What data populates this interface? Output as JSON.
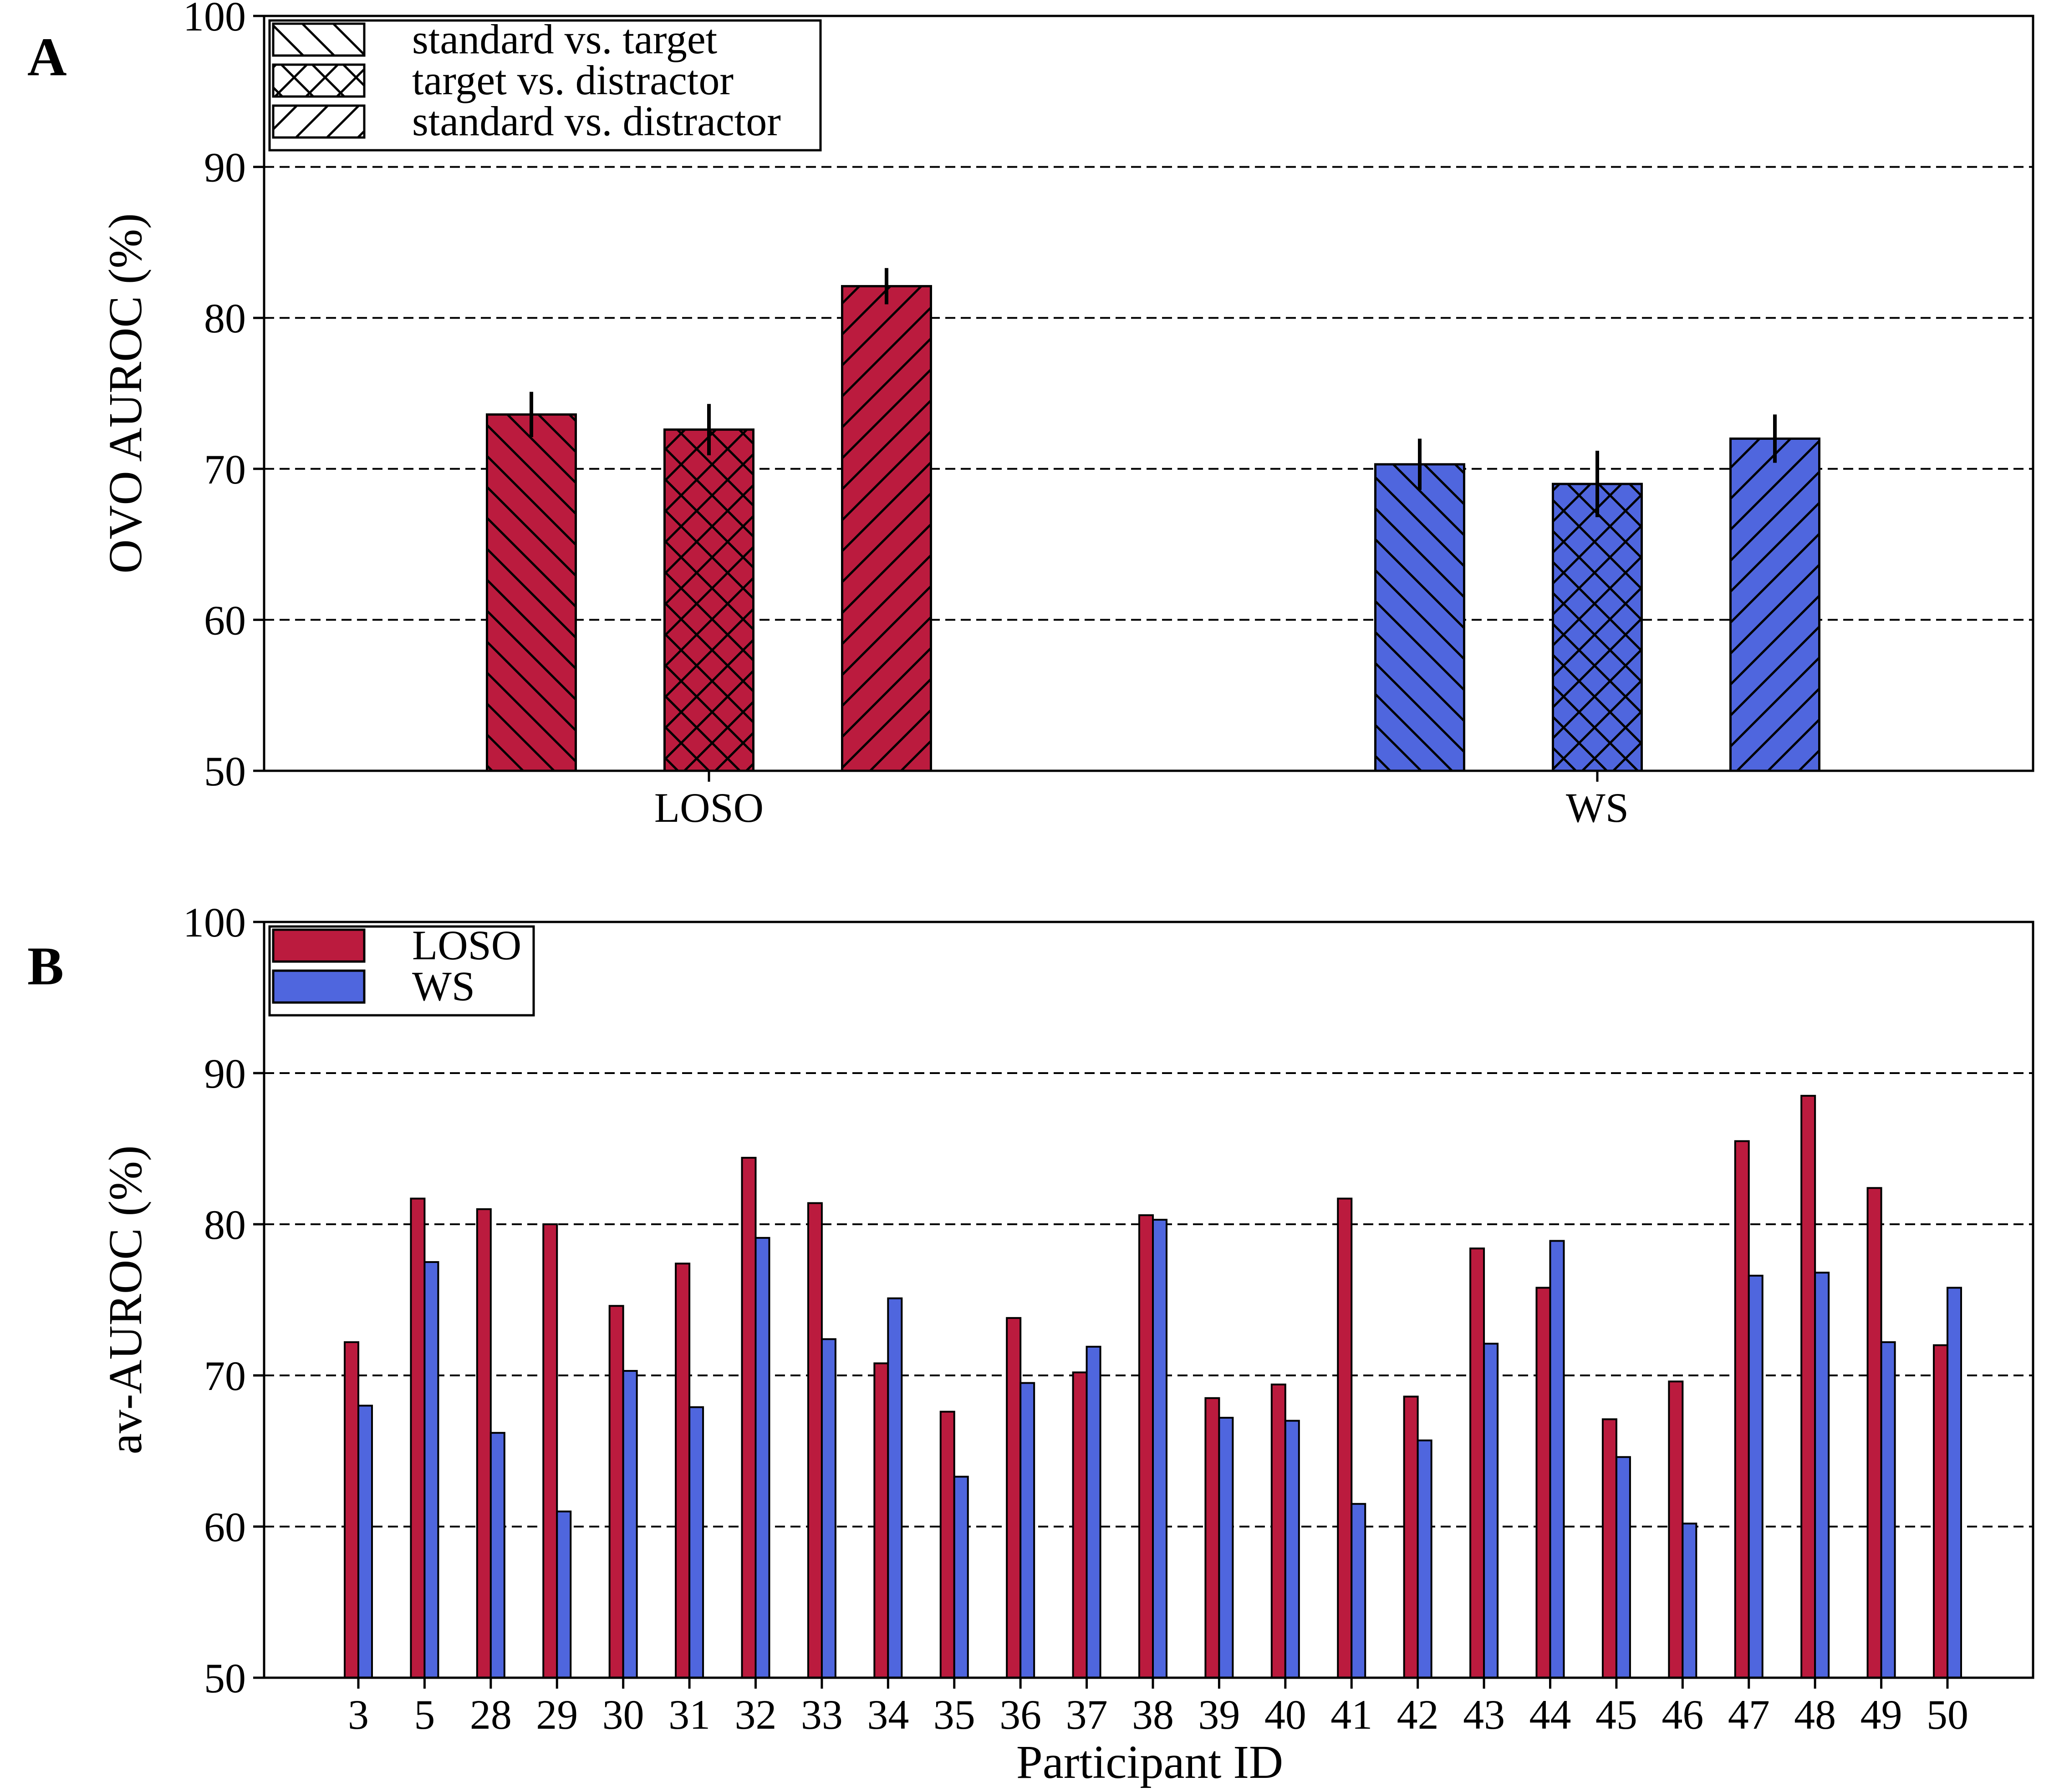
{
  "colors": {
    "loso": "#BB1B3E",
    "ws": "#4F66DE",
    "grid": "#000000"
  },
  "chart_data": [
    {
      "type": "bar",
      "panel_label": "A",
      "categories": [
        "LOSO",
        "WS"
      ],
      "ylabel": "OVO AUROC (%)",
      "ylim": [
        50,
        100
      ],
      "yticks": [
        50,
        60,
        70,
        80,
        90,
        100
      ],
      "grid": "horizontal dashed",
      "legend_placement": "top-left",
      "legend": [
        {
          "label": "standard vs. target",
          "hatch": "diag-down"
        },
        {
          "label": "target vs. distractor",
          "hatch": "cross"
        },
        {
          "label": "standard vs. distractor",
          "hatch": "diag-up"
        }
      ],
      "series": [
        {
          "name": "standard vs. target",
          "values": [
            73.6,
            70.3
          ],
          "errors": [
            1.5,
            1.7
          ]
        },
        {
          "name": "target vs. distractor",
          "values": [
            72.6,
            69.0
          ],
          "errors": [
            1.7,
            2.2
          ]
        },
        {
          "name": "standard vs. distractor",
          "values": [
            82.1,
            72.0
          ],
          "errors": [
            1.2,
            1.6
          ]
        }
      ]
    },
    {
      "type": "bar",
      "panel_label": "B",
      "xlabel": "Participant ID",
      "ylabel": "av-AUROC (%)",
      "ylim": [
        50,
        100
      ],
      "yticks": [
        50,
        60,
        70,
        80,
        90,
        100
      ],
      "grid": "horizontal dashed",
      "legend_placement": "top-left",
      "categories": [
        "3",
        "5",
        "28",
        "29",
        "30",
        "31",
        "32",
        "33",
        "34",
        "35",
        "36",
        "37",
        "38",
        "39",
        "40",
        "41",
        "42",
        "43",
        "44",
        "45",
        "46",
        "47",
        "48",
        "49",
        "50"
      ],
      "series": [
        {
          "name": "LOSO",
          "values": [
            72.2,
            81.7,
            81.0,
            80.0,
            74.6,
            77.4,
            84.4,
            81.4,
            70.8,
            67.6,
            73.8,
            70.2,
            80.6,
            68.5,
            69.4,
            81.7,
            68.6,
            78.4,
            75.8,
            67.1,
            69.6,
            85.5,
            88.5,
            82.4,
            72.0
          ]
        },
        {
          "name": "WS",
          "values": [
            68.0,
            77.5,
            66.2,
            61.0,
            70.3,
            67.9,
            79.1,
            72.4,
            75.1,
            63.3,
            69.5,
            71.9,
            80.3,
            67.2,
            67.0,
            61.5,
            65.7,
            72.1,
            78.9,
            64.6,
            60.2,
            76.6,
            76.8,
            72.2,
            75.8
          ]
        }
      ]
    }
  ]
}
